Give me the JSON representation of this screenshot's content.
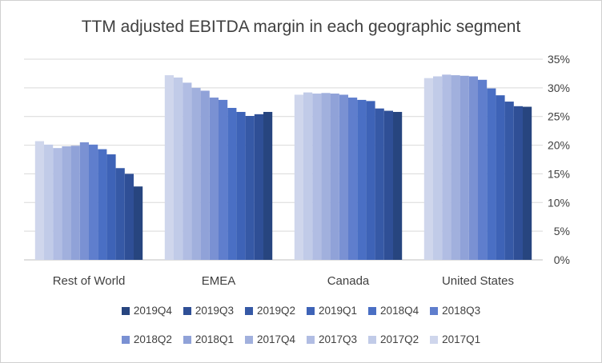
{
  "chart_data": {
    "type": "bar",
    "title": "TTM adjusted EBITDA margin in each geographic segment",
    "categories": [
      "Rest of World",
      "EMEA",
      "Canada",
      "United States"
    ],
    "ylim": [
      0,
      35
    ],
    "yticks": [
      "0%",
      "5%",
      "10%",
      "15%",
      "20%",
      "25%",
      "30%",
      "35%"
    ],
    "y_axis_position": "right",
    "grid": true,
    "legend_position": "bottom",
    "legend_order": [
      "2019Q4",
      "2019Q3",
      "2019Q2",
      "2019Q1",
      "2018Q4",
      "2018Q3",
      "2018Q2",
      "2018Q1",
      "2017Q4",
      "2017Q3",
      "2017Q2",
      "2017Q1"
    ],
    "series": [
      {
        "name": "2017Q1",
        "color": "#cfd6ec",
        "values": [
          20.7,
          32.2,
          28.8,
          31.7
        ]
      },
      {
        "name": "2017Q2",
        "color": "#c1cbe8",
        "values": [
          20.1,
          31.8,
          29.2,
          32.0
        ]
      },
      {
        "name": "2017Q3",
        "color": "#b1bde3",
        "values": [
          19.5,
          30.9,
          29.0,
          32.3
        ]
      },
      {
        "name": "2017Q4",
        "color": "#a1b0dd",
        "values": [
          19.8,
          30.0,
          29.1,
          32.2
        ]
      },
      {
        "name": "2018Q1",
        "color": "#90a2d8",
        "values": [
          19.9,
          29.5,
          29.0,
          32.1
        ]
      },
      {
        "name": "2018Q2",
        "color": "#7a91d3",
        "values": [
          20.5,
          28.3,
          28.8,
          32.0
        ]
      },
      {
        "name": "2018Q3",
        "color": "#5f7ecd",
        "values": [
          20.1,
          27.9,
          28.3,
          31.4
        ]
      },
      {
        "name": "2018Q4",
        "color": "#4a6fc4",
        "values": [
          19.3,
          26.5,
          27.9,
          29.9
        ]
      },
      {
        "name": "2019Q1",
        "color": "#3e63b7",
        "values": [
          18.4,
          25.8,
          27.7,
          28.7
        ]
      },
      {
        "name": "2019Q2",
        "color": "#3659a6",
        "values": [
          16.0,
          25.1,
          26.4,
          27.6
        ]
      },
      {
        "name": "2019Q3",
        "color": "#2f4f96",
        "values": [
          15.0,
          25.4,
          26.0,
          26.8
        ]
      },
      {
        "name": "2019Q4",
        "color": "#27457f",
        "values": [
          12.8,
          25.8,
          25.8,
          26.7
        ]
      }
    ]
  }
}
